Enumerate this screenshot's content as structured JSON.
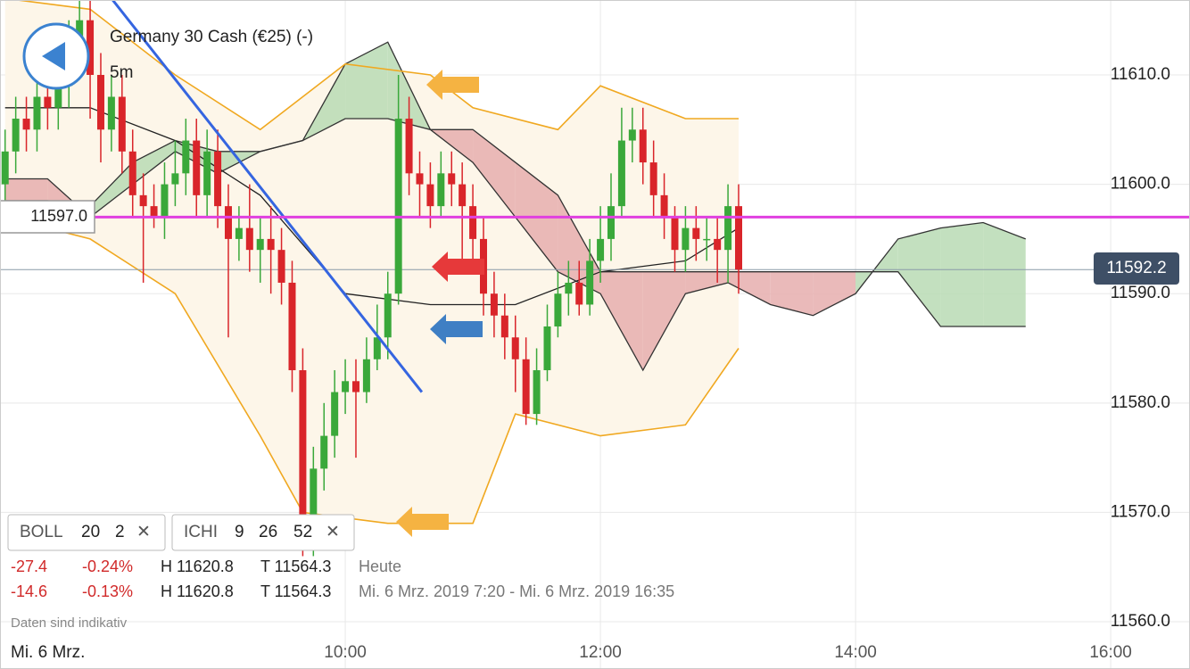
{
  "chart_data": {
    "type": "candlestick",
    "title": "Germany 30 Cash (€25) (-)",
    "interval": "5m",
    "xlim": [
      437.6,
      997.3
    ],
    "ylim": [
      11555.68,
      11616.85
    ],
    "xticks": [
      {
        "value": 600,
        "label": "10:00"
      },
      {
        "value": 720,
        "label": "12:00"
      },
      {
        "value": 840,
        "label": "14:00"
      },
      {
        "value": 960,
        "label": "16:00"
      }
    ],
    "yticks": [
      {
        "value": 11560,
        "label": "11560.0"
      },
      {
        "value": 11570,
        "label": "11570.0"
      },
      {
        "value": 11580,
        "label": "11580.0"
      },
      {
        "value": 11590,
        "label": "11590.0"
      },
      {
        "value": 11600,
        "label": "11600.0"
      },
      {
        "value": 11610,
        "label": "11610.0"
      }
    ],
    "grid": true,
    "up_color": "#3aa83a",
    "down_color": "#d9252a",
    "x": [
      440,
      445,
      450,
      455,
      460,
      465,
      470,
      475,
      480,
      485,
      490,
      495,
      500,
      505,
      510,
      515,
      520,
      525,
      530,
      535,
      540,
      545,
      550,
      555,
      560,
      565,
      570,
      575,
      580,
      585,
      590,
      595,
      600,
      605,
      610,
      615,
      620,
      625,
      630,
      635,
      640,
      645,
      650,
      655,
      660,
      665,
      670,
      675,
      680,
      685,
      690,
      695,
      700,
      705,
      710,
      715,
      720,
      725,
      730,
      735,
      740,
      745,
      750,
      755,
      760,
      765,
      770,
      775,
      780,
      785
    ],
    "open": [
      11600,
      11603,
      11606,
      11605,
      11608,
      11607,
      11609,
      11613,
      11615,
      11610,
      11605,
      11608,
      11603,
      11599,
      11598,
      11597,
      11600,
      11601,
      11604,
      11599,
      11603,
      11598,
      11595,
      11596,
      11594,
      11595,
      11594,
      11591,
      11583,
      11568,
      11574,
      11577,
      11581,
      11582,
      11581,
      11584,
      11586,
      11590,
      11606,
      11601,
      11600,
      11598,
      11601,
      11600,
      11598,
      11595,
      11590,
      11588,
      11586,
      11584,
      11579,
      11583,
      11587,
      11590,
      11591,
      11589,
      11593,
      11595,
      11598,
      11604,
      11605,
      11602,
      11599,
      11597,
      11594,
      11596,
      11595,
      11595,
      11594,
      11598
    ],
    "high": [
      11605,
      11608,
      11608,
      11610,
      11610,
      11611,
      11615,
      11617,
      11617,
      11612,
      11610,
      11610,
      11605,
      11601,
      11600,
      11602,
      11604,
      11606,
      11606,
      11605,
      11605,
      11600,
      11598,
      11600,
      11597,
      11598,
      11596,
      11593,
      11585,
      11576,
      11580,
      11583,
      11584,
      11584,
      11586,
      11589,
      11592,
      11610,
      11608,
      11603,
      11602,
      11603,
      11603,
      11602,
      11600,
      11597,
      11592,
      11590,
      11588,
      11586,
      11585,
      11589,
      11592,
      11593,
      11593,
      11595,
      11598,
      11601,
      11607,
      11607,
      11607,
      11604,
      11601,
      11598,
      11598,
      11598,
      11597,
      11597,
      11600,
      11600
    ],
    "low": [
      11598,
      11601,
      11603,
      11603,
      11605,
      11605,
      11607,
      11611,
      11606,
      11602,
      11603,
      11601,
      11597,
      11591,
      11596,
      11595,
      11598,
      11599,
      11597,
      11597,
      11596,
      11586,
      11593,
      11592,
      11591,
      11590,
      11589,
      11581,
      11566,
      11566,
      11572,
      11575,
      11579,
      11575,
      11580,
      11583,
      11584,
      11589,
      11599,
      11597,
      11596,
      11597,
      11598,
      11593,
      11592,
      11588,
      11586,
      11584,
      11581,
      11578,
      11578,
      11582,
      11586,
      11588,
      11588,
      11588,
      11591,
      11593,
      11597,
      11602,
      11600,
      11597,
      11595,
      11592,
      11592,
      11593,
      11593,
      11591,
      11591,
      11590
    ],
    "close": [
      11603,
      11606,
      11605,
      11608,
      11607,
      11609,
      11613,
      11615,
      11610,
      11605,
      11608,
      11603,
      11599,
      11598,
      11597,
      11600,
      11601,
      11604,
      11599,
      11603,
      11598,
      11595,
      11596,
      11594,
      11595,
      11594,
      11591,
      11583,
      11568,
      11574,
      11577,
      11581,
      11582,
      11581,
      11584,
      11586,
      11590,
      11606,
      11601,
      11600,
      11598,
      11601,
      11600,
      11598,
      11595,
      11590,
      11588,
      11586,
      11584,
      11579,
      11583,
      11587,
      11590,
      11591,
      11589,
      11593,
      11595,
      11598,
      11604,
      11605,
      11602,
      11599,
      11597,
      11594,
      11596,
      11595,
      11595,
      11594,
      11598,
      11592.2
    ],
    "bollinger": {
      "color": "#f0a820",
      "band_color": "#fdf6e9",
      "upper": {
        "x": [
          440,
          480,
          520,
          560,
          600,
          640,
          660,
          700,
          720,
          760,
          785
        ],
        "values": [
          11617,
          11616,
          11610,
          11605,
          11611,
          11610,
          11607,
          11605,
          11609,
          11606,
          11606
        ]
      },
      "middle": {
        "x": [
          440,
          480,
          520,
          560,
          600,
          640,
          680,
          720,
          760,
          785
        ],
        "values": [
          11607,
          11607,
          11604,
          11599,
          11590,
          11589,
          11589,
          11592,
          11593,
          11596
        ]
      },
      "lower": {
        "x": [
          440,
          480,
          520,
          560,
          580,
          620,
          660,
          680,
          720,
          760,
          785
        ],
        "values": [
          11597,
          11595,
          11590,
          11577,
          11570,
          11569,
          11569,
          11579,
          11577,
          11578,
          11585
        ]
      }
    },
    "ichimoku": {
      "line_color": "#333333",
      "bull_color": "#b9dbb4",
      "bear_color": "#e6aeae",
      "x": [
        440,
        460,
        480,
        500,
        520,
        540,
        560,
        580,
        600,
        620,
        640,
        660,
        680,
        700,
        720,
        740,
        760,
        780,
        800,
        820,
        840,
        860,
        880,
        900,
        920
      ],
      "span_a": [
        11598.5,
        11598.5,
        11598,
        11602,
        11604,
        11603,
        11603,
        11604,
        11611,
        11613,
        11605,
        11602,
        11597,
        11592,
        11590,
        11583,
        11590,
        11591,
        11589,
        11588,
        11590,
        11595,
        11596,
        11596.5,
        11595
      ],
      "span_b": [
        11600.5,
        11600.5,
        11597,
        11600,
        11603,
        11601,
        11603,
        11604,
        11606,
        11606,
        11605,
        11605,
        11602,
        11599,
        11592,
        11592,
        11592,
        11592,
        11592,
        11592,
        11592,
        11592,
        11587,
        11587,
        11587
      ]
    },
    "trendline": {
      "color": "#3565e0",
      "x": [
        490,
        636
      ],
      "values": [
        11617,
        11581
      ]
    },
    "marker_line": {
      "value": 11597,
      "label": "11597.0",
      "color": "#e040e0"
    },
    "current_price": 11592.2,
    "indicators": [
      {
        "name": "BOLL",
        "params": [
          "20",
          "2"
        ]
      },
      {
        "name": "ICHI",
        "params": [
          "9",
          "26",
          "52"
        ]
      }
    ],
    "info_rows": [
      {
        "change": "-27.4",
        "change_pct": "-0.24%",
        "high": "H 11620.8",
        "low": "T 11564.3",
        "period": "Heute"
      },
      {
        "change": "-14.6",
        "change_pct": "-0.13%",
        "high": "H 11620.8",
        "low": "T 11564.3",
        "period": "Mi. 6 Mrz. 2019 7:20 - Mi. 6 Mrz. 2019 16:35"
      }
    ],
    "disclaimer": "Daten sind indikativ",
    "date_label": "Mi. 6 Mrz."
  }
}
